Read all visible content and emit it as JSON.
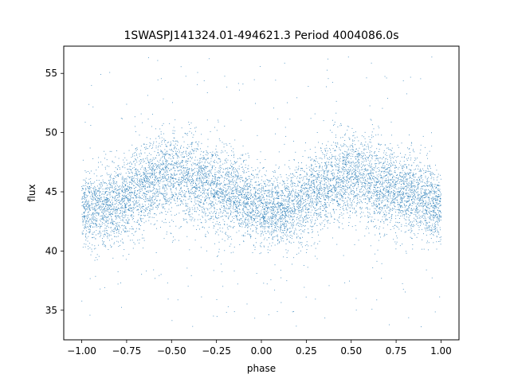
{
  "chart_data": {
    "type": "scatter",
    "title": "1SWASPJ141324.01-494621.3 Period 4004086.0s",
    "xlabel": "phase",
    "ylabel": "flux",
    "xlim": [
      -1.1,
      1.1
    ],
    "ylim": [
      32.5,
      57.3
    ],
    "xticks": [
      -1.0,
      -0.75,
      -0.5,
      -0.25,
      0.0,
      0.25,
      0.5,
      0.75,
      1.0
    ],
    "xtick_labels": [
      "−1.00",
      "−0.75",
      "−0.50",
      "−0.25",
      "0.00",
      "0.25",
      "0.50",
      "0.75",
      "1.00"
    ],
    "yticks": [
      35,
      40,
      45,
      50,
      55
    ],
    "ytick_labels": [
      "35",
      "40",
      "45",
      "50",
      "55"
    ],
    "grid": false,
    "legend": "none",
    "marker_color": "#1f77b4",
    "series": [
      {
        "phase_range": [
          -1.0,
          1.0
        ],
        "trend_x": [
          -1.0,
          -0.9,
          -0.8,
          -0.7,
          -0.6,
          -0.5,
          -0.4,
          -0.3,
          -0.2,
          -0.1,
          0.0,
          0.1,
          0.2,
          0.3,
          0.4,
          0.5,
          0.6,
          0.7,
          0.8,
          0.9,
          1.0
        ],
        "trend_center": [
          43.5,
          43.5,
          44.0,
          45.0,
          46.0,
          46.5,
          46.0,
          45.5,
          45.0,
          44.5,
          43.5,
          43.5,
          44.0,
          45.0,
          46.0,
          46.5,
          46.0,
          45.5,
          45.0,
          44.5,
          43.5
        ],
        "trend_spread": [
          2.0,
          2.0,
          2.2,
          2.3,
          2.4,
          2.5,
          2.5,
          2.4,
          2.3,
          2.2,
          2.0,
          2.0,
          2.2,
          2.3,
          2.4,
          2.5,
          2.5,
          2.4,
          2.3,
          2.2,
          2.0
        ],
        "outlier_range": [
          33.5,
          56.5
        ]
      }
    ]
  }
}
